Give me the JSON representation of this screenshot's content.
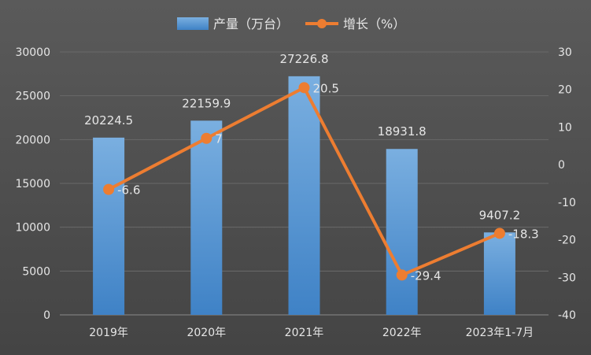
{
  "chart_data": {
    "type": "bar+line",
    "categories": [
      "2019年",
      "2020年",
      "2021年",
      "2022年",
      "2023年1-7月"
    ],
    "series": [
      {
        "name": "产量（万台）",
        "type": "bar",
        "axis": "left",
        "values": [
          20224.5,
          22159.9,
          27226.8,
          18931.8,
          9407.2
        ],
        "labels": [
          "20224.5",
          "22159.9",
          "27226.8",
          "18931.8",
          "9407.2"
        ],
        "color": "#5b9bd5"
      },
      {
        "name": "增长（%）",
        "type": "line",
        "axis": "right",
        "values": [
          -6.6,
          7,
          20.5,
          -29.4,
          -18.3
        ],
        "labels": [
          "-6.6",
          "7",
          "20.5",
          "-29.4",
          "-18.3"
        ],
        "color": "#ed7d31"
      }
    ],
    "y_left": {
      "min": 0,
      "max": 30000,
      "ticks": [
        "0",
        "5000",
        "10000",
        "15000",
        "20000",
        "25000",
        "30000"
      ]
    },
    "y_right": {
      "min": -40,
      "max": 30,
      "ticks": [
        "-40",
        "-30",
        "-20",
        "-10",
        "0",
        "10",
        "20",
        "30"
      ]
    },
    "grid": true,
    "legend_position": "top"
  }
}
